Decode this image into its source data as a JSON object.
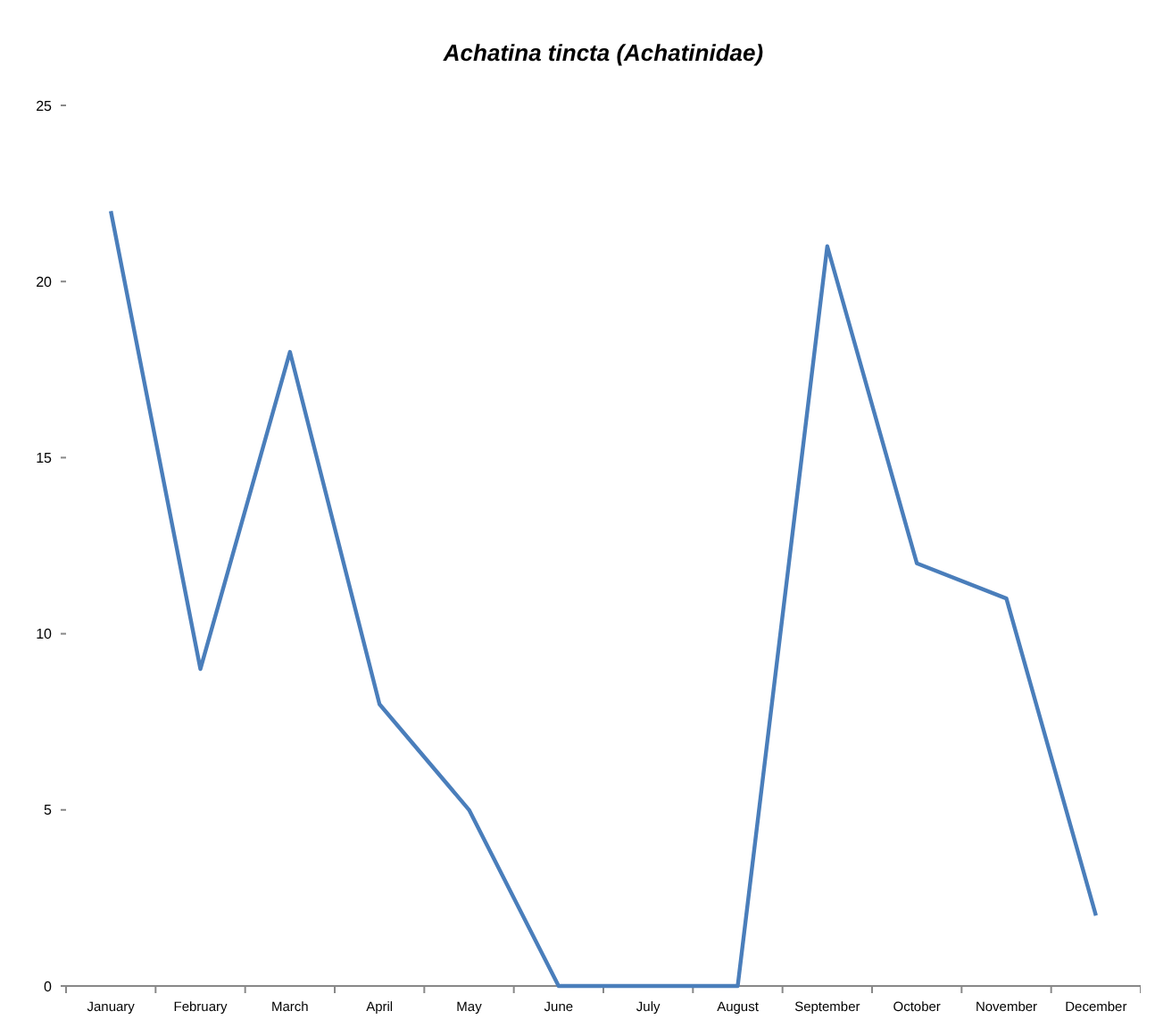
{
  "chart_data": {
    "type": "line",
    "title": "Achatina tincta (Achatinidae)",
    "categories": [
      "January",
      "February",
      "March",
      "April",
      "May",
      "June",
      "July",
      "August",
      "September",
      "October",
      "November",
      "December"
    ],
    "series": [
      {
        "color": "#4a7ebb",
        "values": [
          22,
          9,
          18,
          8,
          5,
          0,
          0,
          0,
          21,
          12,
          11,
          2
        ]
      }
    ],
    "ylim": [
      0,
      25
    ],
    "yticks": [
      0,
      5,
      10,
      15,
      20,
      25
    ],
    "grid": false,
    "marker": "none",
    "line_style": "solid"
  }
}
